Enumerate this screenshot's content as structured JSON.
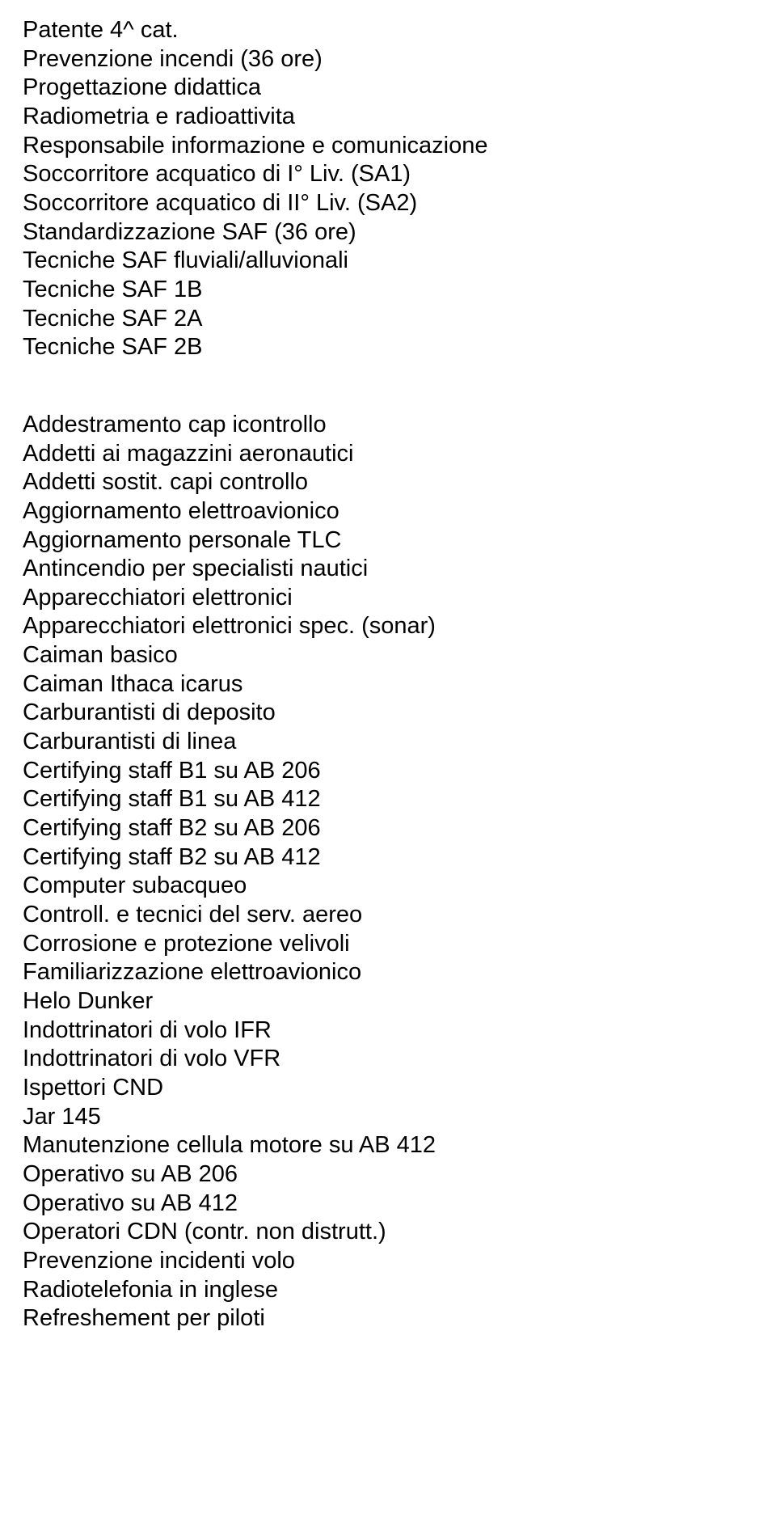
{
  "group1": [
    "Patente 4^ cat.",
    "Prevenzione incendi (36 ore)",
    "Progettazione didattica",
    "Radiometria e radioattivita",
    "Responsabile informazione e comunicazione",
    "Soccorritore acquatico di I° Liv. (SA1)",
    "Soccorritore acquatico di II° Liv. (SA2)",
    "Standardizzazione SAF (36 ore)",
    "Tecniche SAF fluviali/alluvionali",
    "Tecniche SAF 1B",
    "Tecniche SAF 2A",
    "Tecniche SAF 2B"
  ],
  "group2": [
    "Addestramento cap icontrollo",
    "Addetti ai magazzini aeronautici",
    "Addetti sostit. capi controllo",
    "Aggiornamento elettroavionico",
    "Aggiornamento personale TLC",
    "Antincendio per specialisti nautici",
    "Apparecchiatori elettronici",
    "Apparecchiatori elettronici spec. (sonar)",
    "Caiman basico",
    "Caiman Ithaca icarus",
    "Carburantisti di deposito",
    "Carburantisti di linea",
    "Certifying staff B1 su AB 206",
    "Certifying staff B1 su AB 412",
    "Certifying staff B2 su AB 206",
    "Certifying staff B2 su AB 412",
    "Computer subacqueo",
    "Controll. e tecnici del serv. aereo",
    "Corrosione e protezione velivoli",
    "Familiarizzazione elettroavionico",
    "Helo Dunker",
    "Indottrinatori di volo IFR",
    "Indottrinatori di volo VFR",
    "Ispettori CND",
    "Jar 145",
    "Manutenzione cellula motore su AB 412",
    "Operativo su AB 206",
    "Operativo su AB 412",
    "Operatori CDN (contr. non distrutt.)",
    "Prevenzione incidenti volo",
    "Radiotelefonia in inglese",
    "Refreshement per piloti"
  ]
}
